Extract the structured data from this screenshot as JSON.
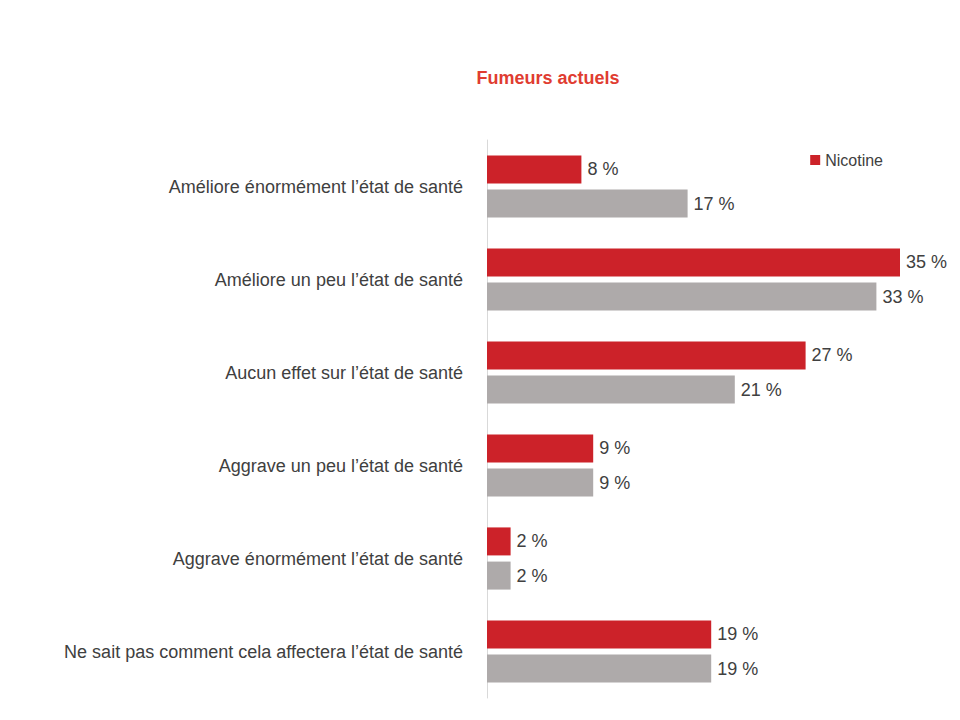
{
  "chart_data": {
    "type": "bar",
    "title": "Fumeurs actuels",
    "orientation": "horizontal",
    "categories": [
      "Améliore énormément l’état de santé",
      "Améliore un peu l’état de santé",
      "Aucun effet sur l’état de santé",
      "Aggrave un peu l’état de santé",
      "Aggrave énormément l’état de santé",
      "Ne sait pas comment cela affectera l’état de santé"
    ],
    "series": [
      {
        "name": "Nicotine",
        "color": "#cc2229",
        "values": [
          8,
          35,
          27,
          9,
          2,
          19
        ],
        "value_labels": [
          "8 %",
          "35 %",
          "27 %",
          "9 %",
          "2 %",
          "19 %"
        ]
      },
      {
        "color": "#aeaaaa",
        "values": [
          17,
          33,
          21,
          9,
          2,
          19
        ],
        "value_labels": [
          "17 %",
          "33 %",
          "21 %",
          "9 %",
          "2 %",
          "19 %"
        ]
      }
    ],
    "xlim": [
      0,
      40
    ],
    "xticks": [
      0,
      10,
      20,
      30,
      40
    ],
    "grid": false,
    "legend": "top-right",
    "data_labels": true,
    "tick_labels": "y"
  }
}
